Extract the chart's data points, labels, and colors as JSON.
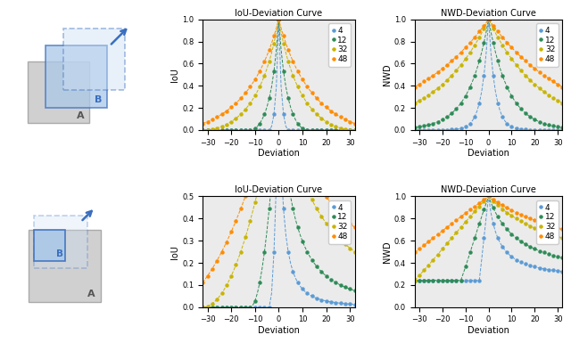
{
  "sizes": [
    4,
    12,
    32,
    48
  ],
  "colors": [
    "#5B9BD5",
    "#2E8B57",
    "#C8B400",
    "#FF8C00"
  ],
  "deviation_range": [
    -32,
    32
  ],
  "n_points": 65,
  "top_row": {
    "iou_title": "IoU-Deviation Curve",
    "nwd_title": "NWD-Deviation Curve",
    "iou_ylabel": "IoU",
    "nwd_ylabel": "NWD",
    "iou_ylim": [
      0,
      1.0
    ],
    "nwd_ylim": [
      0,
      1.0
    ]
  },
  "bottom_row": {
    "iou_title": "IoU-Deviation Curve",
    "nwd_title": "NWD-Deviation Curve",
    "iou_ylabel": "IoU",
    "nwd_ylabel": "NWD",
    "iou_ylim": [
      0,
      0.5
    ],
    "nwd_ylim": [
      0,
      1.0
    ]
  },
  "xlabel": "Deviation",
  "bg_color": "#EBEBEB",
  "legend_labels": [
    "4",
    "12",
    "32",
    "48"
  ]
}
